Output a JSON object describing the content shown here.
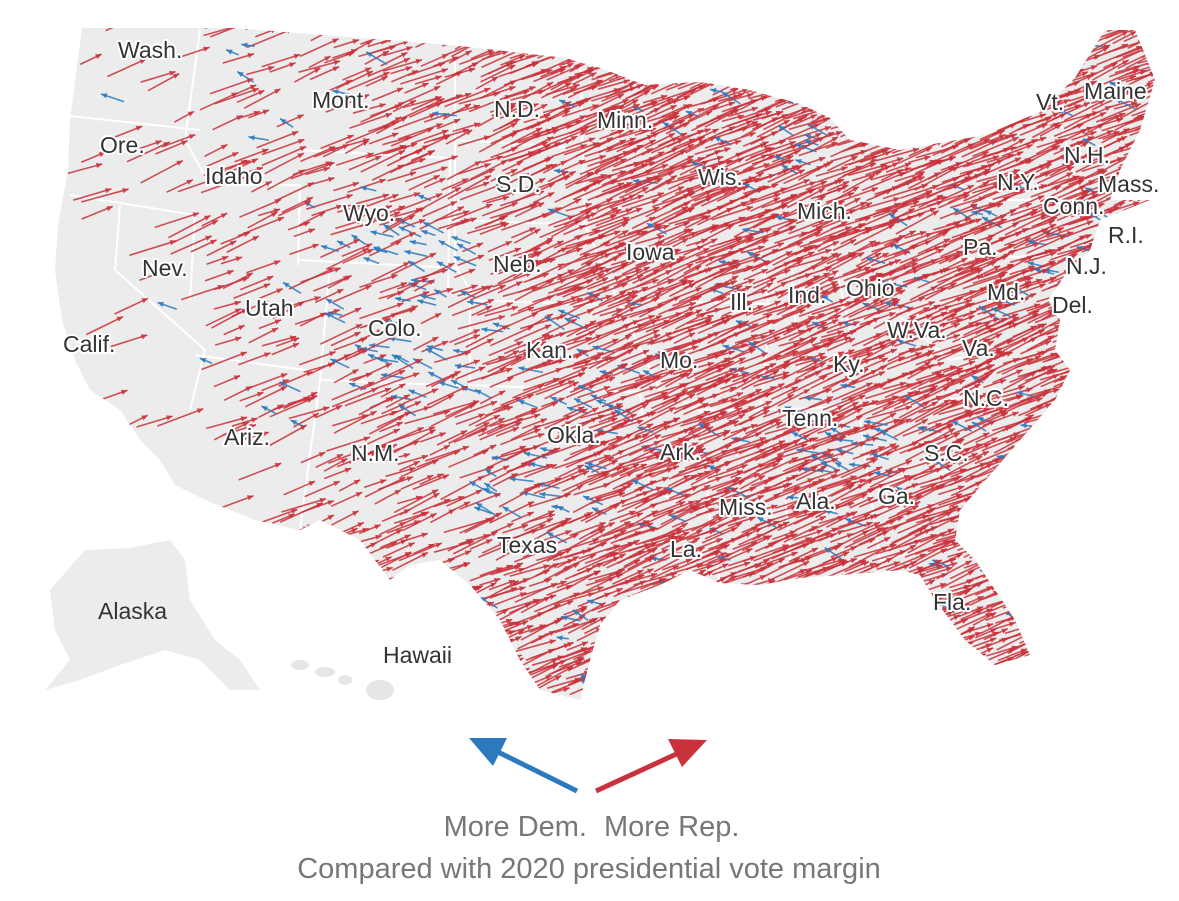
{
  "map": {
    "colors": {
      "republican": "#c9313b",
      "democrat": "#2b79be",
      "land": "#ececec",
      "borders": "#ffffff"
    },
    "states": {
      "wash": "Wash.",
      "ore": "Ore.",
      "idaho": "Idaho",
      "mont": "Mont.",
      "wyo": "Wyo.",
      "nev": "Nev.",
      "calif": "Calif.",
      "utah": "Utah",
      "ariz": "Ariz.",
      "colo": "Colo.",
      "nm": "N.M.",
      "nd": "N.D.",
      "sd": "S.D.",
      "neb": "Neb.",
      "kan": "Kan.",
      "okla": "Okla.",
      "texas": "Texas",
      "minn": "Minn.",
      "iowa": "Iowa",
      "mo": "Mo.",
      "ark": "Ark.",
      "la": "La.",
      "wis": "Wis.",
      "ill": "Ill.",
      "mich": "Mich.",
      "ind": "Ind.",
      "ohio": "Ohio",
      "ky": "Ky.",
      "tenn": "Tenn.",
      "miss": "Miss.",
      "ala": "Ala.",
      "ga": "Ga.",
      "fla": "Fla.",
      "sc": "S.C.",
      "nc": "N.C.",
      "va": "Va.",
      "wva": "W.Va.",
      "pa": "Pa.",
      "ny": "N.Y.",
      "md": "Md.",
      "del": "Del.",
      "nj": "N.J.",
      "conn": "Conn.",
      "ri": "R.I.",
      "mass": "Mass.",
      "nh": "N.H.",
      "vt": "Vt.",
      "maine": "Maine",
      "alaska": "Alaska",
      "hawaii": "Hawaii"
    }
  },
  "legend": {
    "dem_label": "More Dem.",
    "rep_label": "More Rep.",
    "caption": "Compared with 2020 presidential vote margin"
  }
}
